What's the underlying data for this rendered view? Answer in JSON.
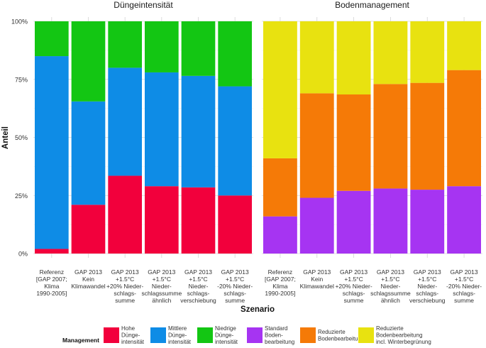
{
  "chart_data": [
    {
      "type": "bar",
      "stacked": true,
      "title": "Düngeintensität",
      "categories": [
        [
          "Referenz",
          "[GAP 2007;",
          "Klima",
          "1990-2005]"
        ],
        [
          "GAP 2013",
          "Kein",
          "Klimawandel"
        ],
        [
          "GAP 2013",
          "+1.5°C",
          "+20% Nieder-",
          "schlags-",
          "summe"
        ],
        [
          "GAP 2013",
          "+1.5°C",
          "Nieder-",
          "schlagssumme",
          "ähnlich"
        ],
        [
          "GAP 2013",
          "+1.5°C",
          "Nieder-",
          "schlags-",
          "verschiebung"
        ],
        [
          "GAP 2013",
          "+1.5°C",
          "-20% Nieder-",
          "schlags-",
          "summe"
        ]
      ],
      "series": [
        {
          "name": "Hohe Dünge-intensität",
          "color": "#f2003c",
          "values": [
            2,
            21,
            33.5,
            29,
            28.5,
            25
          ]
        },
        {
          "name": "Mittlere Dünge-intensität",
          "color": "#0e8ce6",
          "values": [
            83,
            44.5,
            46.5,
            49,
            48,
            47
          ]
        },
        {
          "name": "Niedrige Dünge-intensität",
          "color": "#13c613",
          "values": [
            15,
            34.5,
            20,
            22,
            23.5,
            28
          ]
        }
      ],
      "ylim": [
        0,
        100
      ]
    },
    {
      "type": "bar",
      "stacked": true,
      "title": "Bodenmanagement",
      "categories": [
        [
          "Referenz",
          "[GAP 2007;",
          "Klima",
          "1990-2005]"
        ],
        [
          "GAP 2013",
          "Kein",
          "Klimawandel"
        ],
        [
          "GAP 2013",
          "+1.5°C",
          "+20% Nieder-",
          "schlags-",
          "summe"
        ],
        [
          "GAP 2013",
          "+1.5°C",
          "Nieder-",
          "schlagssumme",
          "ähnlich"
        ],
        [
          "GAP 2013",
          "+1.5°C",
          "Nieder-",
          "schlags-",
          "verschiebung"
        ],
        [
          "GAP 2013",
          "+1.5°C",
          "-20% Nieder-",
          "schlags-",
          "summe"
        ]
      ],
      "series": [
        {
          "name": "Standard Boden-bearbeitung",
          "color": "#a634f2",
          "values": [
            16,
            24,
            27,
            28,
            27.5,
            29
          ]
        },
        {
          "name": "Reduzierte Bodenbearbeitung",
          "color": "#f57a07",
          "values": [
            25,
            45,
            41.5,
            45,
            46,
            50
          ]
        },
        {
          "name": "Reduzierte Bodenbearbeitung incl. Winterbegrünung",
          "color": "#e8e210",
          "values": [
            59,
            31,
            31.5,
            27,
            26.5,
            21
          ]
        }
      ],
      "ylim": [
        0,
        100
      ]
    }
  ],
  "axes": {
    "ylabel": "Anteil",
    "xlabel": "Szenario",
    "yticks": [
      "0%",
      "25%",
      "50%",
      "75%",
      "100%"
    ]
  },
  "legend": {
    "title": "Management",
    "items": [
      {
        "lines": [
          "Hohe",
          "Dünge-",
          "intensität"
        ],
        "color": "#f2003c"
      },
      {
        "lines": [
          "Mittlere",
          "Dünge-",
          "intensität"
        ],
        "color": "#0e8ce6"
      },
      {
        "lines": [
          "Niedrige",
          "Dünge-",
          "intensität"
        ],
        "color": "#13c613"
      },
      {
        "lines": [
          "Standard",
          "Boden-",
          "bearbeitung"
        ],
        "color": "#a634f2"
      },
      {
        "lines": [
          "Reduzierte",
          "Bodenbearbeitung"
        ],
        "color": "#f57a07"
      },
      {
        "lines": [
          "Reduzierte",
          "Bodenbearbeitung",
          "incl. Winterbegrünung"
        ],
        "color": "#e8e210"
      }
    ]
  }
}
